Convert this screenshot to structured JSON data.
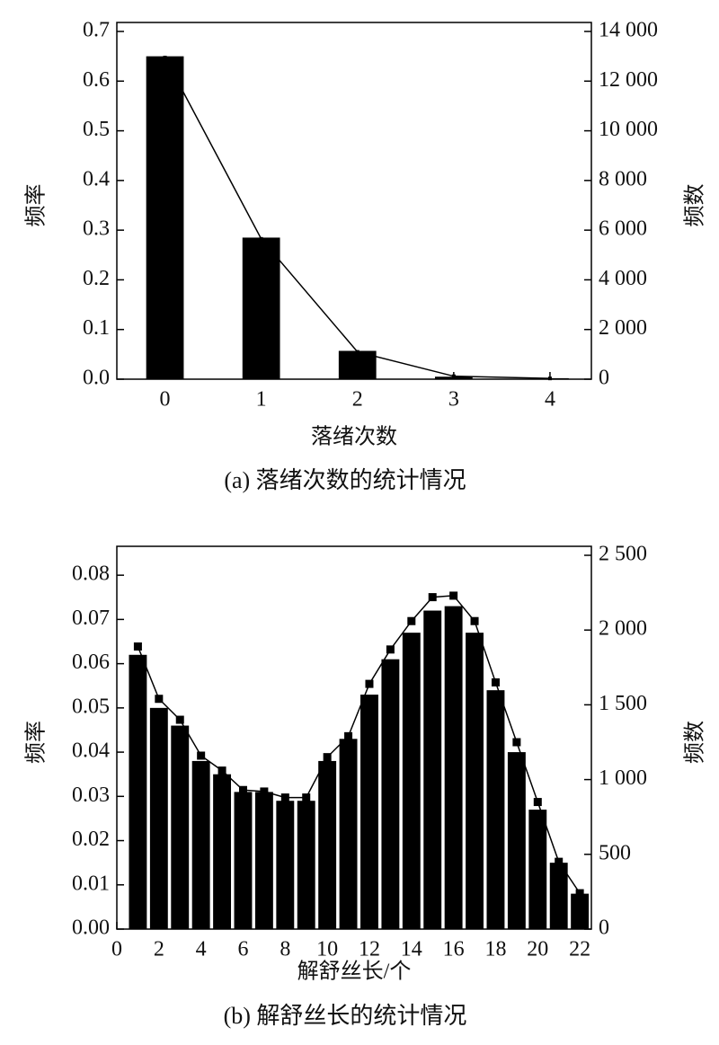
{
  "chart_data": [
    {
      "type": "bar",
      "caption": "(a) 落绪次数的统计情况",
      "x_label": "落绪次数",
      "y_label": "频率",
      "y2_label": "频数",
      "x": [
        0,
        1,
        2,
        3,
        4
      ],
      "xlim": [
        -0.5,
        4.43
      ],
      "xticks": [
        0,
        1,
        2,
        3,
        4
      ],
      "ylim": [
        0,
        0.7
      ],
      "yticks": [
        {
          "value": 0,
          "label": "0.0"
        },
        0.1,
        0.2,
        0.3,
        0.4,
        0.5,
        0.6,
        0.7
      ],
      "y2lim": [
        0,
        14000
      ],
      "y2ticks": [
        0,
        {
          "value": 2000,
          "label": "2 000"
        },
        {
          "value": 4000,
          "label": "4 000"
        },
        {
          "value": 6000,
          "label": "6 000"
        },
        {
          "value": 8000,
          "label": "8 000"
        },
        {
          "value": 10000,
          "label": "10 000"
        },
        {
          "value": 12000,
          "label": "12 000"
        },
        {
          "value": 14000,
          "label": "14 000"
        }
      ],
      "series": [
        {
          "type": "bar",
          "color": "#000000",
          "values": [
            0.65,
            0.285,
            0.057,
            0.005,
            0.002
          ]
        },
        {
          "type": "line",
          "axis": "y2",
          "color": "#000000",
          "values": [
            12950,
            5650,
            1100,
            120,
            30
          ]
        }
      ]
    },
    {
      "type": "bar",
      "caption": "(b) 解舒丝长的统计情况",
      "x_label": "解舒丝长/个",
      "y_label": "频率",
      "y2_label": "频数",
      "x": [
        1,
        2,
        3,
        4,
        5,
        6,
        7,
        8,
        9,
        10,
        11,
        12,
        13,
        14,
        15,
        16,
        17,
        18,
        19,
        20,
        21,
        22
      ],
      "xlim": [
        0,
        22.55
      ],
      "xticks": [
        0,
        2,
        4,
        6,
        8,
        10,
        12,
        14,
        16,
        18,
        20,
        22
      ],
      "ylim": [
        0,
        0.0845
      ],
      "yticks": [
        {
          "value": 0,
          "label": "0.00"
        },
        0.01,
        0.02,
        0.03,
        0.04,
        0.05,
        0.06,
        0.07,
        0.08
      ],
      "y2lim": [
        0,
        2500
      ],
      "y2ticks": [
        0,
        500,
        {
          "value": 1000,
          "label": "1 000"
        },
        {
          "value": 1500,
          "label": "1 500"
        },
        {
          "value": 2000,
          "label": "2 000"
        },
        {
          "value": 2500,
          "label": "2 500"
        }
      ],
      "series": [
        {
          "type": "bar",
          "color": "#000000",
          "values": [
            0.062,
            0.05,
            0.046,
            0.038,
            0.035,
            0.031,
            0.031,
            0.029,
            0.029,
            0.038,
            0.043,
            0.053,
            0.061,
            0.067,
            0.072,
            0.073,
            0.067,
            0.054,
            0.04,
            0.027,
            0.015,
            0.008
          ]
        },
        {
          "type": "line",
          "axis": "y2",
          "color": "#000000",
          "values": [
            1890,
            1540,
            1400,
            1160,
            1060,
            930,
            920,
            880,
            880,
            1150,
            1290,
            1640,
            1870,
            2060,
            2220,
            2230,
            2060,
            1650,
            1250,
            850,
            450,
            240
          ]
        }
      ]
    }
  ]
}
